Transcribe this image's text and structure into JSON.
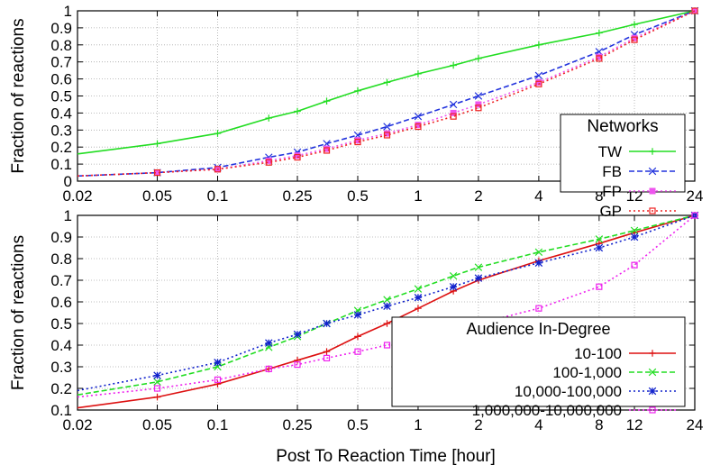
{
  "figure": {
    "xlabel": "Post To Reaction Time [hour]"
  },
  "colors": {
    "TW": "#22dd22",
    "FB": "#2233dd",
    "FP": "#ee55ee",
    "GP": "#ee2222",
    "10-100": "#dd1111",
    "100-1,000": "#22dd22",
    "10,000-100,000": "#1122cc",
    "1,000,000-10,000,000": "#ee22ee"
  },
  "chart_data": [
    {
      "type": "line",
      "title": "",
      "xlabel": "",
      "ylabel": "Fraction of reactions",
      "xscale": "log",
      "xlim": [
        0.02,
        24
      ],
      "ylim": [
        0,
        1
      ],
      "xticks": [
        "0.02",
        "0.05",
        "0.1",
        "0.25",
        "0.5",
        "1",
        "2",
        "4",
        "8",
        "12",
        "24"
      ],
      "yticks": [
        "0",
        "0.1",
        "0.2",
        "0.3",
        "0.4",
        "0.5",
        "0.6",
        "0.7",
        "0.8",
        "0.9",
        "1"
      ],
      "grid": true,
      "legend": {
        "title": "Networks",
        "placement": "right"
      },
      "series": [
        {
          "name": "TW",
          "style": "solid",
          "marker": "plus",
          "x": [
            0.02,
            0.05,
            0.1,
            0.18,
            0.25,
            0.35,
            0.5,
            0.7,
            1,
            1.5,
            2,
            4,
            8,
            12,
            24
          ],
          "y": [
            0.16,
            0.22,
            0.28,
            0.37,
            0.41,
            0.47,
            0.53,
            0.58,
            0.63,
            0.68,
            0.72,
            0.8,
            0.87,
            0.92,
            1.0
          ]
        },
        {
          "name": "FB",
          "style": "dashed",
          "marker": "x",
          "x": [
            0.02,
            0.05,
            0.1,
            0.18,
            0.25,
            0.35,
            0.5,
            0.7,
            1,
            1.5,
            2,
            4,
            8,
            12,
            24
          ],
          "y": [
            0.03,
            0.05,
            0.08,
            0.14,
            0.17,
            0.22,
            0.27,
            0.32,
            0.38,
            0.45,
            0.5,
            0.62,
            0.76,
            0.86,
            1.0
          ]
        },
        {
          "name": "FP",
          "style": "dotted",
          "marker": "square-filled",
          "x": [
            0.02,
            0.05,
            0.1,
            0.18,
            0.25,
            0.35,
            0.5,
            0.7,
            1,
            1.5,
            2,
            4,
            8,
            12,
            24
          ],
          "y": [
            0.03,
            0.05,
            0.07,
            0.12,
            0.15,
            0.19,
            0.24,
            0.28,
            0.33,
            0.4,
            0.45,
            0.58,
            0.73,
            0.84,
            1.0
          ]
        },
        {
          "name": "GP",
          "style": "dotted",
          "marker": "square",
          "x": [
            0.02,
            0.05,
            0.1,
            0.18,
            0.25,
            0.35,
            0.5,
            0.7,
            1,
            1.5,
            2,
            4,
            8,
            12,
            24
          ],
          "y": [
            0.03,
            0.05,
            0.07,
            0.11,
            0.14,
            0.18,
            0.23,
            0.27,
            0.32,
            0.38,
            0.43,
            0.57,
            0.72,
            0.83,
            1.0
          ]
        }
      ]
    },
    {
      "type": "line",
      "title": "",
      "xlabel": "Post To Reaction Time [hour]",
      "ylabel": "Fraction of reactions",
      "xscale": "log",
      "xlim": [
        0.02,
        24
      ],
      "ylim": [
        0.1,
        1
      ],
      "xticks": [
        "0.02",
        "0.05",
        "0.1",
        "0.25",
        "0.5",
        "1",
        "2",
        "4",
        "8",
        "12",
        "24"
      ],
      "yticks": [
        "0.1",
        "0.2",
        "0.3",
        "0.4",
        "0.5",
        "0.6",
        "0.7",
        "0.8",
        "0.9",
        "1"
      ],
      "grid": true,
      "legend": {
        "title": "Audience In-Degree",
        "placement": "right"
      },
      "series": [
        {
          "name": "10-100",
          "style": "solid",
          "marker": "plus",
          "x": [
            0.02,
            0.05,
            0.1,
            0.18,
            0.25,
            0.35,
            0.5,
            0.7,
            1,
            1.5,
            2,
            4,
            8,
            12,
            24
          ],
          "y": [
            0.11,
            0.16,
            0.22,
            0.29,
            0.33,
            0.37,
            0.44,
            0.5,
            0.57,
            0.65,
            0.7,
            0.79,
            0.87,
            0.92,
            1.0
          ]
        },
        {
          "name": "100-1,000",
          "style": "dashed",
          "marker": "x",
          "x": [
            0.02,
            0.05,
            0.1,
            0.18,
            0.25,
            0.35,
            0.5,
            0.7,
            1,
            1.5,
            2,
            4,
            8,
            12,
            24
          ],
          "y": [
            0.17,
            0.23,
            0.3,
            0.39,
            0.44,
            0.5,
            0.56,
            0.61,
            0.66,
            0.72,
            0.76,
            0.83,
            0.89,
            0.93,
            1.0
          ]
        },
        {
          "name": "10,000-100,000",
          "style": "dotted",
          "marker": "star",
          "x": [
            0.02,
            0.05,
            0.1,
            0.18,
            0.25,
            0.35,
            0.5,
            0.7,
            1,
            1.5,
            2,
            4,
            8,
            12,
            24
          ],
          "y": [
            0.19,
            0.26,
            0.32,
            0.41,
            0.45,
            0.5,
            0.54,
            0.58,
            0.62,
            0.67,
            0.71,
            0.78,
            0.85,
            0.9,
            1.0
          ]
        },
        {
          "name": "1,000,000-10,000,000",
          "style": "dotted",
          "marker": "square",
          "x": [
            0.02,
            0.05,
            0.1,
            0.18,
            0.25,
            0.35,
            0.5,
            0.7,
            1,
            1.5,
            2,
            4,
            8,
            12,
            24
          ],
          "y": [
            0.16,
            0.2,
            0.24,
            0.29,
            0.31,
            0.34,
            0.37,
            0.4,
            0.43,
            0.47,
            0.5,
            0.57,
            0.67,
            0.77,
            1.0
          ]
        }
      ]
    }
  ]
}
